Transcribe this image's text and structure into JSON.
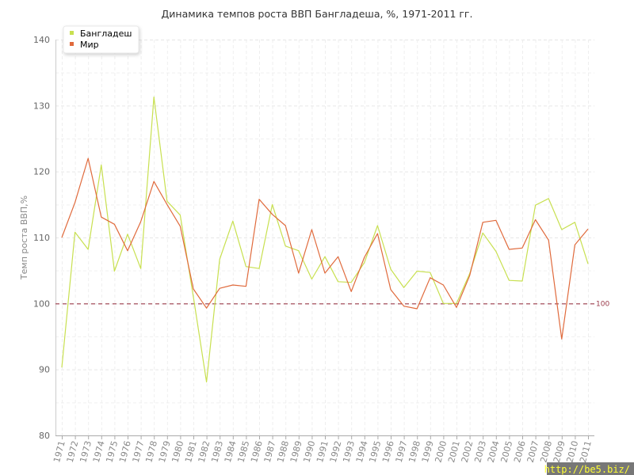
{
  "chart_data": {
    "type": "line",
    "title": "Динамика темпов роста ВВП Бангладеша, %, 1971-2011 гг.",
    "xlabel": "",
    "ylabel": "Темп роста ВВП,%",
    "ylim": [
      80,
      140
    ],
    "yticks": [
      80,
      90,
      100,
      110,
      120,
      130,
      140
    ],
    "grid": true,
    "legend_position": "top-left",
    "x": [
      "1971",
      "1972",
      "1973",
      "1974",
      "1975",
      "1976",
      "1977",
      "1978",
      "1979",
      "1980",
      "1981",
      "1982",
      "1983",
      "1984",
      "1985",
      "1986",
      "1987",
      "1988",
      "1989",
      "1990",
      "1991",
      "1992",
      "1993",
      "1994",
      "1995",
      "1996",
      "1997",
      "1998",
      "1999",
      "2000",
      "2001",
      "2002",
      "2003",
      "2004",
      "2005",
      "2006",
      "2007",
      "2008",
      "2009",
      "2010",
      "2011"
    ],
    "series": [
      {
        "name": "Бангладеш",
        "color": "#c8e050",
        "values": [
          90.3,
          110.8,
          108.2,
          121.0,
          104.9,
          110.5,
          105.3,
          131.3,
          115.5,
          113.4,
          101.0,
          88.1,
          106.7,
          112.5,
          105.6,
          105.3,
          115.0,
          108.7,
          108.0,
          103.7,
          107.1,
          103.3,
          103.2,
          106.2,
          111.8,
          105.2,
          102.4,
          104.9,
          104.7,
          100.0,
          100.0,
          104.5,
          110.7,
          107.9,
          103.5,
          103.4,
          114.9,
          115.9,
          111.2,
          112.3,
          106.0
        ]
      },
      {
        "name": "Мир",
        "color": "#e06a3c",
        "values": [
          110.0,
          115.3,
          122.0,
          113.1,
          112.0,
          108.0,
          112.4,
          118.5,
          115.0,
          111.7,
          102.2,
          99.3,
          102.3,
          102.8,
          102.6,
          115.8,
          113.5,
          111.8,
          104.6,
          111.2,
          104.6,
          107.1,
          101.8,
          107.0,
          110.6,
          102.1,
          99.6,
          99.2,
          103.9,
          102.8,
          99.4,
          104.2,
          112.3,
          112.6,
          108.2,
          108.4,
          112.7,
          109.6,
          94.6,
          108.9,
          111.3
        ]
      }
    ],
    "reference_line": {
      "value": 100,
      "label": "100",
      "color": "#9a3a4a"
    }
  },
  "watermark": "http://be5.biz/"
}
